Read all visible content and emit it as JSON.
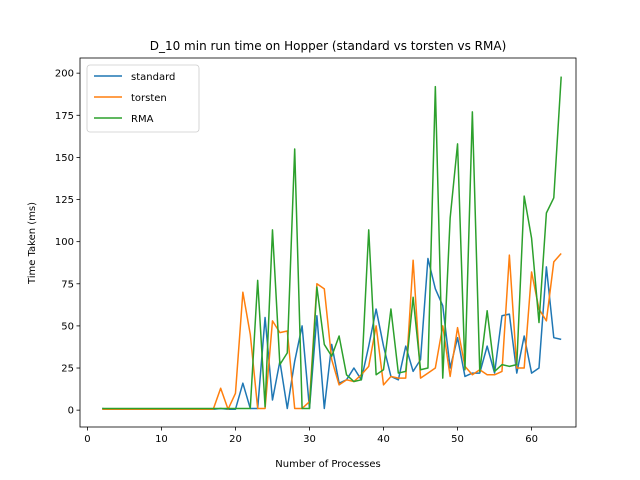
{
  "chart_data": {
    "type": "line",
    "title": "D_10 min run time on Hopper (standard vs torsten vs RMA)",
    "xlabel": "Number of Processes",
    "ylabel": "Time Taken (ms)",
    "xlim": [
      -1,
      66
    ],
    "ylim": [
      -10,
      209
    ],
    "xticks": [
      0,
      10,
      20,
      30,
      40,
      50,
      60
    ],
    "yticks": [
      0,
      25,
      50,
      75,
      100,
      125,
      150,
      175,
      200
    ],
    "grid": false,
    "legend_position": "top-left",
    "x": [
      2,
      3,
      4,
      5,
      6,
      7,
      8,
      9,
      10,
      11,
      12,
      13,
      14,
      15,
      16,
      17,
      18,
      19,
      20,
      21,
      22,
      23,
      24,
      25,
      26,
      27,
      28,
      29,
      30,
      31,
      32,
      33,
      34,
      35,
      36,
      37,
      38,
      39,
      40,
      41,
      42,
      43,
      44,
      45,
      46,
      47,
      48,
      49,
      50,
      51,
      52,
      53,
      54,
      55,
      56,
      57,
      58,
      59,
      60,
      61,
      62,
      63,
      64
    ],
    "series": [
      {
        "name": "standard",
        "color": "#1f77b4",
        "values": [
          1,
          0.5,
          0.5,
          0.5,
          0.5,
          0.5,
          0.5,
          0.5,
          0.5,
          0.5,
          0.5,
          0.5,
          0.5,
          0.5,
          0.5,
          0.5,
          1,
          0.5,
          0.5,
          16,
          1,
          1,
          55,
          6,
          29,
          1,
          29,
          50,
          1,
          56,
          1,
          39,
          16,
          18,
          25,
          18,
          38,
          60,
          38,
          20,
          18,
          38,
          23,
          30,
          90,
          72,
          62,
          25,
          43,
          20,
          22,
          22,
          38,
          22,
          56,
          57,
          22,
          44,
          22,
          25,
          85,
          43,
          42
        ]
      },
      {
        "name": "torsten",
        "color": "#ff7f0e",
        "values": [
          0.5,
          0.5,
          0.5,
          0.5,
          0.5,
          0.5,
          0.5,
          0.5,
          0.5,
          0.5,
          0.5,
          0.5,
          0.5,
          0.5,
          0.5,
          0.5,
          13,
          0.5,
          10,
          70,
          45,
          1,
          1,
          53,
          46,
          47,
          1,
          1,
          5,
          75,
          72,
          30,
          15,
          18,
          17,
          21,
          26,
          50,
          15,
          20,
          19,
          19,
          89,
          19,
          22,
          25,
          50,
          20,
          49,
          26,
          21,
          24,
          21,
          21,
          23,
          92,
          25,
          25,
          82,
          60,
          53,
          88,
          93
        ]
      },
      {
        "name": "RMA",
        "color": "#2ca02c",
        "values": [
          1,
          1,
          1,
          1,
          1,
          1,
          1,
          1,
          1,
          1,
          1,
          1,
          1,
          1,
          1,
          1,
          1,
          1,
          1,
          1,
          1,
          77,
          2,
          107,
          27,
          34,
          155,
          1,
          1,
          73,
          39,
          32,
          44,
          21,
          17,
          18,
          107,
          21,
          24,
          60,
          22,
          23,
          67,
          24,
          25,
          192,
          19,
          114,
          158,
          24,
          177,
          23,
          59,
          23,
          27,
          26,
          27,
          127,
          102,
          52,
          117,
          126,
          198
        ]
      }
    ]
  }
}
